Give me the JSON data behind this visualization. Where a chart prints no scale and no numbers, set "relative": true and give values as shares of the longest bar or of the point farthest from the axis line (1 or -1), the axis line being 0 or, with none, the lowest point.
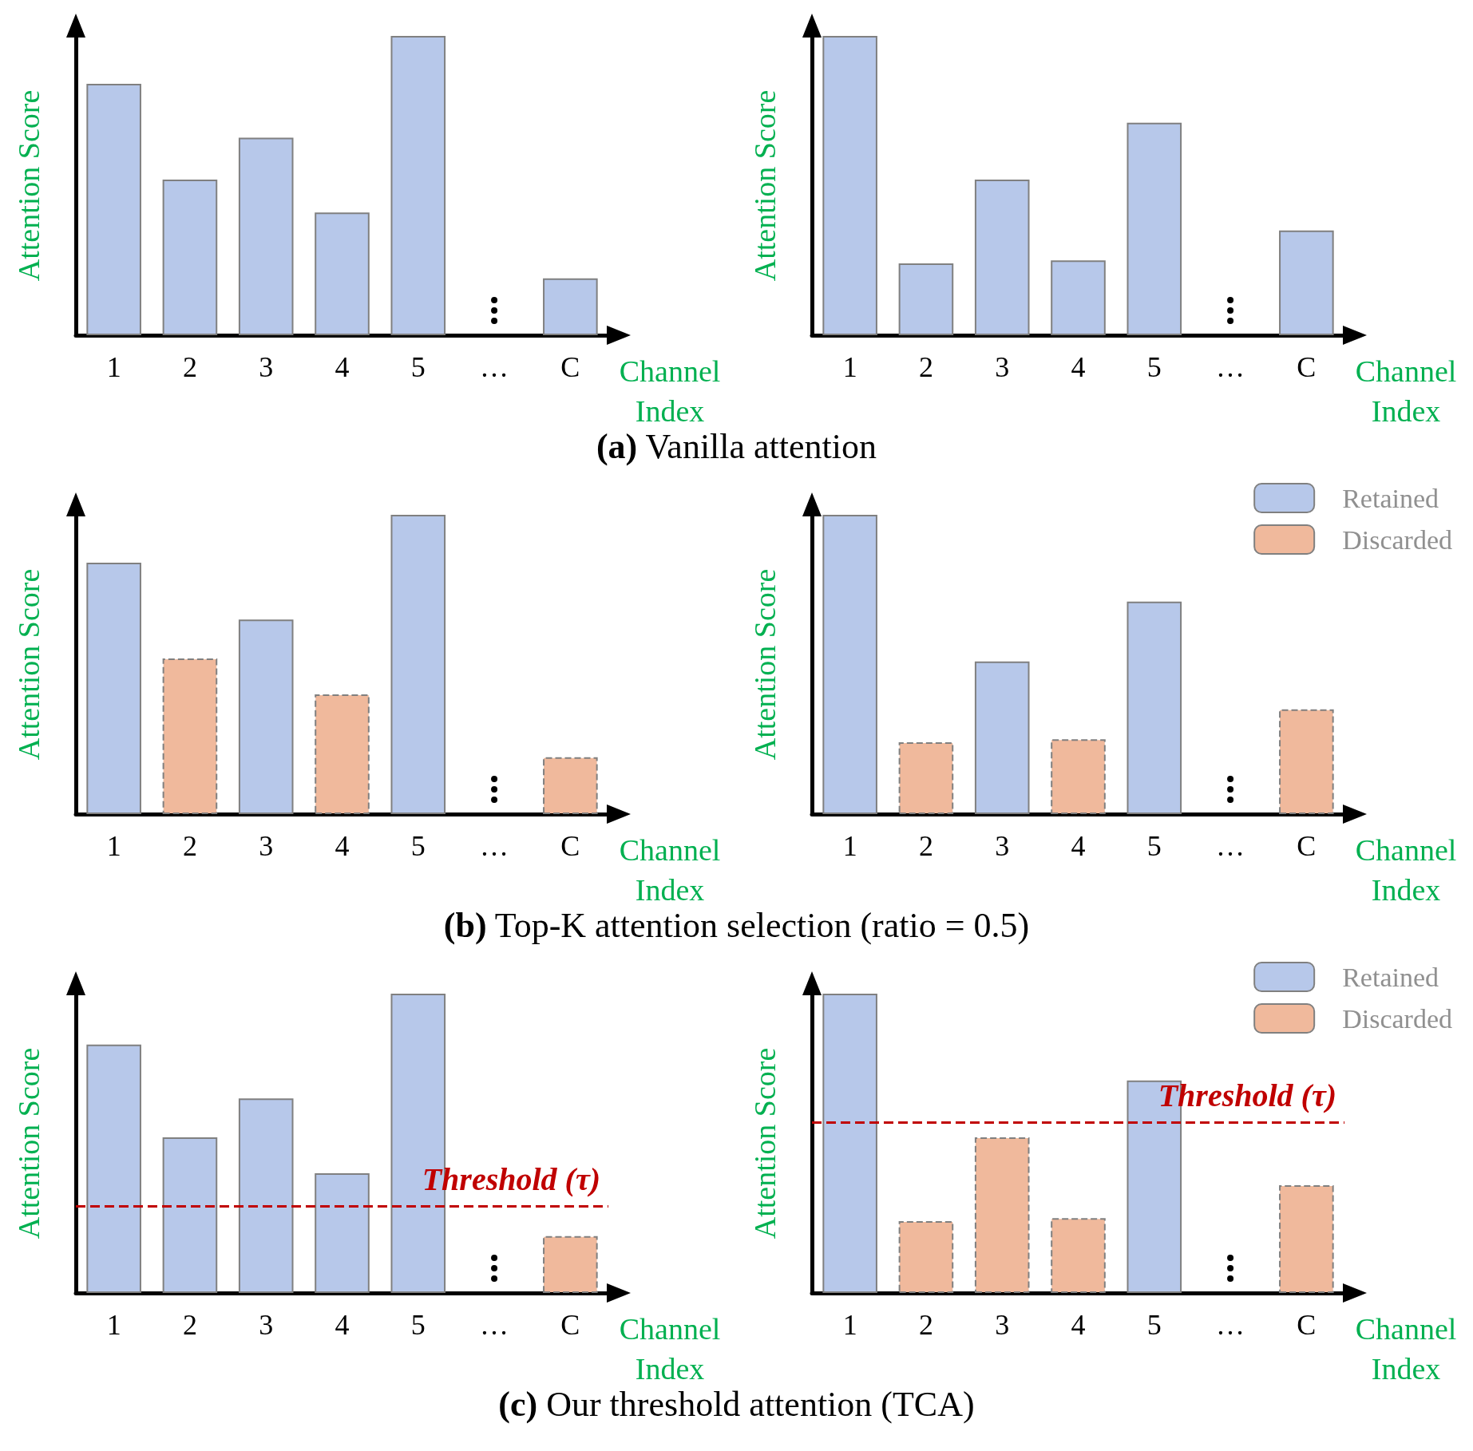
{
  "chart_data": [
    {
      "type": "bar",
      "relative": true,
      "categories": [
        "1",
        "2",
        "3",
        "4",
        "5",
        "…",
        "C"
      ],
      "ylabel": "Attention Score",
      "xlabel": "Channel Index",
      "grid": false,
      "legend": false,
      "series": [
        {
          "color": "#b7c8ea",
          "values": [
            0.84,
            0.52,
            0.66,
            0.41,
            1,
            null,
            0.19
          ]
        }
      ],
      "annotations": [
        "(a) Vanilla attention"
      ]
    },
    {
      "type": "bar",
      "relative": true,
      "categories": [
        "1",
        "2",
        "3",
        "4",
        "5",
        "…",
        "C"
      ],
      "ylabel": "Attention Score",
      "xlabel": "Channel Index",
      "grid": false,
      "legend": false,
      "series": [
        {
          "color": "#b7c8ea",
          "values": [
            1,
            0.24,
            0.52,
            0.25,
            0.71,
            null,
            0.35
          ]
        }
      ]
    },
    {
      "type": "bar",
      "relative": true,
      "categories": [
        "1",
        "2",
        "3",
        "4",
        "5",
        "…",
        "C"
      ],
      "ylabel": "Attention Score",
      "xlabel": "Channel Index",
      "grid": false,
      "legend": false,
      "series": [
        {
          "color": "#b7c8ea",
          "values": [
            0.84,
            null,
            0.65,
            null,
            1,
            null,
            null
          ]
        },
        {
          "color": "#f0b99c",
          "line_style": "dashed",
          "values": [
            null,
            0.52,
            null,
            0.4,
            null,
            null,
            0.19
          ]
        }
      ],
      "annotations": [
        "(b) Top-K attention selection (ratio = 0.5)"
      ]
    },
    {
      "type": "bar",
      "relative": true,
      "categories": [
        "1",
        "2",
        "3",
        "4",
        "5",
        "…",
        "C"
      ],
      "ylabel": "Attention Score",
      "xlabel": "Channel Index",
      "grid": false,
      "legend": "top right",
      "series": [
        {
          "name": "Retained",
          "color": "#b7c8ea",
          "values": [
            1,
            null,
            0.51,
            null,
            0.71,
            null,
            null
          ]
        },
        {
          "name": "Discarded",
          "color": "#f0b99c",
          "line_style": "dashed",
          "values": [
            null,
            0.24,
            null,
            0.25,
            null,
            null,
            0.35
          ]
        }
      ]
    },
    {
      "type": "bar",
      "relative": true,
      "categories": [
        "1",
        "2",
        "3",
        "4",
        "5",
        "…",
        "C"
      ],
      "ylabel": "Attention Score",
      "xlabel": "Channel Index",
      "grid": false,
      "legend": false,
      "series": [
        {
          "color": "#b7c8ea",
          "values": [
            0.83,
            0.52,
            0.65,
            0.4,
            1,
            null,
            null
          ]
        },
        {
          "color": "#f0b99c",
          "line_style": "dashed",
          "values": [
            null,
            null,
            null,
            null,
            null,
            null,
            0.19
          ]
        }
      ],
      "ref_lines": [
        {
          "axis": "y",
          "value": 0.29,
          "label": "Threshold (τ)",
          "color": "#c00000",
          "line_style": "dashed"
        }
      ],
      "annotations": [
        "(c) Our threshold attention (TCA)"
      ]
    },
    {
      "type": "bar",
      "relative": true,
      "categories": [
        "1",
        "2",
        "3",
        "4",
        "5",
        "…",
        "C"
      ],
      "ylabel": "Attention Score",
      "xlabel": "Channel Index",
      "grid": false,
      "legend": "top right",
      "series": [
        {
          "name": "Retained",
          "color": "#b7c8ea",
          "values": [
            1,
            null,
            null,
            null,
            0.71,
            null,
            null
          ]
        },
        {
          "name": "Discarded",
          "color": "#f0b99c",
          "line_style": "dashed",
          "values": [
            null,
            0.24,
            0.52,
            0.25,
            null,
            null,
            0.36
          ]
        }
      ],
      "ref_lines": [
        {
          "axis": "y",
          "value": 0.57,
          "label": "Threshold (τ)",
          "color": "#c00000",
          "line_style": "dashed"
        }
      ]
    }
  ]
}
